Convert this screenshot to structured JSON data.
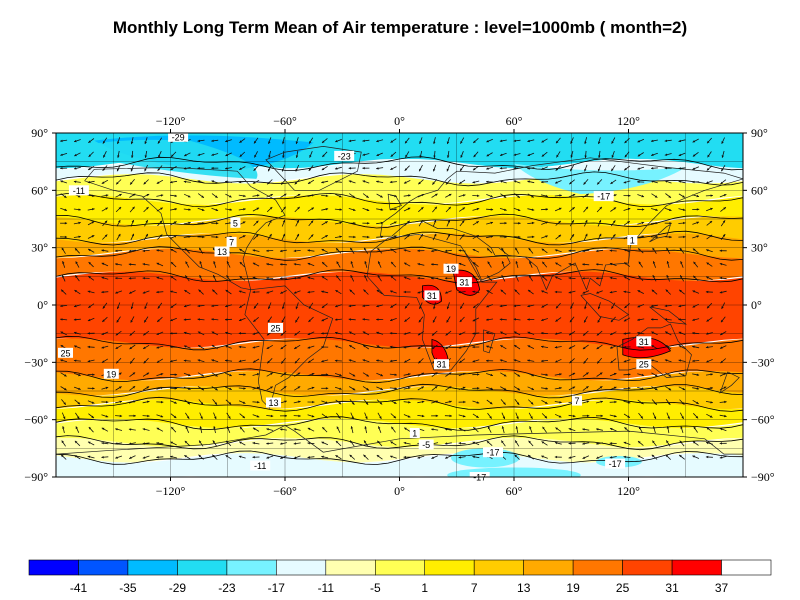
{
  "title": "Monthly Long Term Mean of Air temperature : level=1000mb ( month=2)",
  "map": {
    "projection": "cylindrical-equidistant",
    "lon_range": [
      -180,
      180
    ],
    "lat_range": [
      -90,
      90
    ],
    "grid": true,
    "wind_vectors": true
  },
  "axes": {
    "lon_ticks_top": [
      "−120°",
      "−60°",
      "0°",
      "60°",
      "120°"
    ],
    "lon_ticks_bottom": [
      "−120°",
      "−60°",
      "0°",
      "60°",
      "120°"
    ],
    "lat_ticks_left": [
      "90°",
      "60°",
      "30°",
      "0°",
      "−30°",
      "−60°",
      "−90°"
    ],
    "lat_ticks_right": [
      "90°",
      "60°",
      "30°",
      "0°",
      "−30°",
      "−60°",
      "−90°"
    ]
  },
  "contour_labels": [
    {
      "text": "-29",
      "lon": -116,
      "lat": 88
    },
    {
      "text": "-23",
      "lon": -29,
      "lat": 78
    },
    {
      "text": "-11",
      "lon": -168,
      "lat": 60
    },
    {
      "text": "-17",
      "lon": 107,
      "lat": 57
    },
    {
      "text": "5",
      "lon": -86,
      "lat": 43
    },
    {
      "text": "7",
      "lon": -88,
      "lat": 33
    },
    {
      "text": "13",
      "lon": -93,
      "lat": 28
    },
    {
      "text": "1",
      "lon": 122,
      "lat": 34
    },
    {
      "text": "19",
      "lon": 27,
      "lat": 19
    },
    {
      "text": "31",
      "lon": 34,
      "lat": 12
    },
    {
      "text": "31",
      "lon": 17,
      "lat": 5
    },
    {
      "text": "25",
      "lon": -65,
      "lat": -12
    },
    {
      "text": "25",
      "lon": -175,
      "lat": -25
    },
    {
      "text": "31",
      "lon": 22,
      "lat": -31
    },
    {
      "text": "31",
      "lon": 128,
      "lat": -19
    },
    {
      "text": "25",
      "lon": 128,
      "lat": -31
    },
    {
      "text": "19",
      "lon": -151,
      "lat": -36
    },
    {
      "text": "13",
      "lon": -66,
      "lat": -51
    },
    {
      "text": "7",
      "lon": 93,
      "lat": -50
    },
    {
      "text": "1",
      "lon": 8,
      "lat": -67
    },
    {
      "text": "-5",
      "lon": 14,
      "lat": -73
    },
    {
      "text": "-17",
      "lon": 49,
      "lat": -77
    },
    {
      "text": "-17",
      "lon": 113,
      "lat": -83
    },
    {
      "text": "-17",
      "lon": 42,
      "lat": -90
    },
    {
      "text": "-11",
      "lon": -73,
      "lat": -84
    }
  ],
  "colorbar": {
    "colors": [
      "#0000ff",
      "#0055ff",
      "#00bbff",
      "#22ddf2",
      "#77f2ff",
      "#e6fbff",
      "#ffffb0",
      "#ffff55",
      "#ffee00",
      "#ffcc00",
      "#ffaa00",
      "#ff7700",
      "#ff4400",
      "#ff0000",
      "#ffffff"
    ],
    "labels": [
      "-41",
      "-35",
      "-29",
      "-23",
      "-17",
      "-11",
      "-5",
      "1",
      "7",
      "13",
      "19",
      "25",
      "31",
      "37"
    ]
  },
  "temperature_band_colors": {
    "polar_north": "#22ddf2",
    "cold_north": "#00bbff",
    "subarctic": "#77f2ff",
    "tropics": "#ff4400",
    "hot_spots": "#ff0000"
  }
}
